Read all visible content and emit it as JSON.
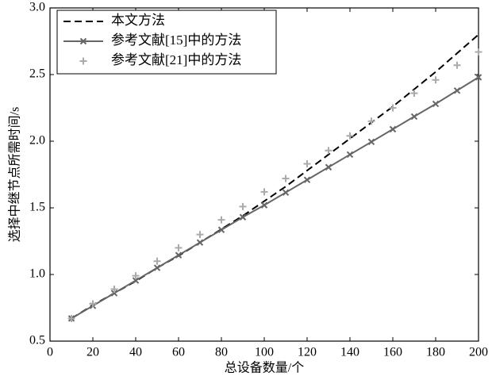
{
  "chart_data": {
    "type": "line",
    "xlabel": "总设备数量/个",
    "ylabel": "选择中继节点所需时间/s",
    "x": [
      10,
      20,
      30,
      40,
      50,
      60,
      70,
      80,
      90,
      100,
      110,
      120,
      130,
      140,
      150,
      160,
      170,
      180,
      190,
      200
    ],
    "series": [
      {
        "name": "本文方法",
        "color": "#000000",
        "line": "dashed",
        "marker": "none",
        "values": [
          0.67,
          0.77,
          0.86,
          0.95,
          1.05,
          1.14,
          1.24,
          1.34,
          1.44,
          1.55,
          1.66,
          1.78,
          1.9,
          2.02,
          2.14,
          2.26,
          2.39,
          2.52,
          2.66,
          2.8
        ]
      },
      {
        "name": "参考文献[15]中的方法",
        "color": "#666666",
        "line": "solid",
        "marker": "x",
        "values": [
          0.67,
          0.765,
          0.86,
          0.955,
          1.05,
          1.145,
          1.24,
          1.335,
          1.43,
          1.52,
          1.615,
          1.71,
          1.805,
          1.9,
          1.995,
          2.09,
          2.185,
          2.28,
          2.38,
          2.48
        ]
      },
      {
        "name": "参考文献[21]中的方法",
        "color": "#aaaaaa",
        "line": "none",
        "marker": "plus",
        "values": [
          0.67,
          0.78,
          0.89,
          0.99,
          1.1,
          1.2,
          1.3,
          1.41,
          1.51,
          1.62,
          1.72,
          1.83,
          1.93,
          2.04,
          2.15,
          2.25,
          2.36,
          2.46,
          2.57,
          2.67
        ]
      }
    ],
    "xlim": [
      0,
      200
    ],
    "xticks": [
      0,
      20,
      40,
      60,
      80,
      100,
      120,
      140,
      160,
      180,
      200
    ],
    "ylim": [
      0.5,
      3.0
    ],
    "yticks": [
      0.5,
      {
        "value": 1,
        "label": "1.0"
      },
      1.5,
      {
        "value": 2,
        "label": "2.0"
      },
      2.5,
      {
        "value": 3,
        "label": "3.0"
      }
    ],
    "legend": "upper left"
  }
}
